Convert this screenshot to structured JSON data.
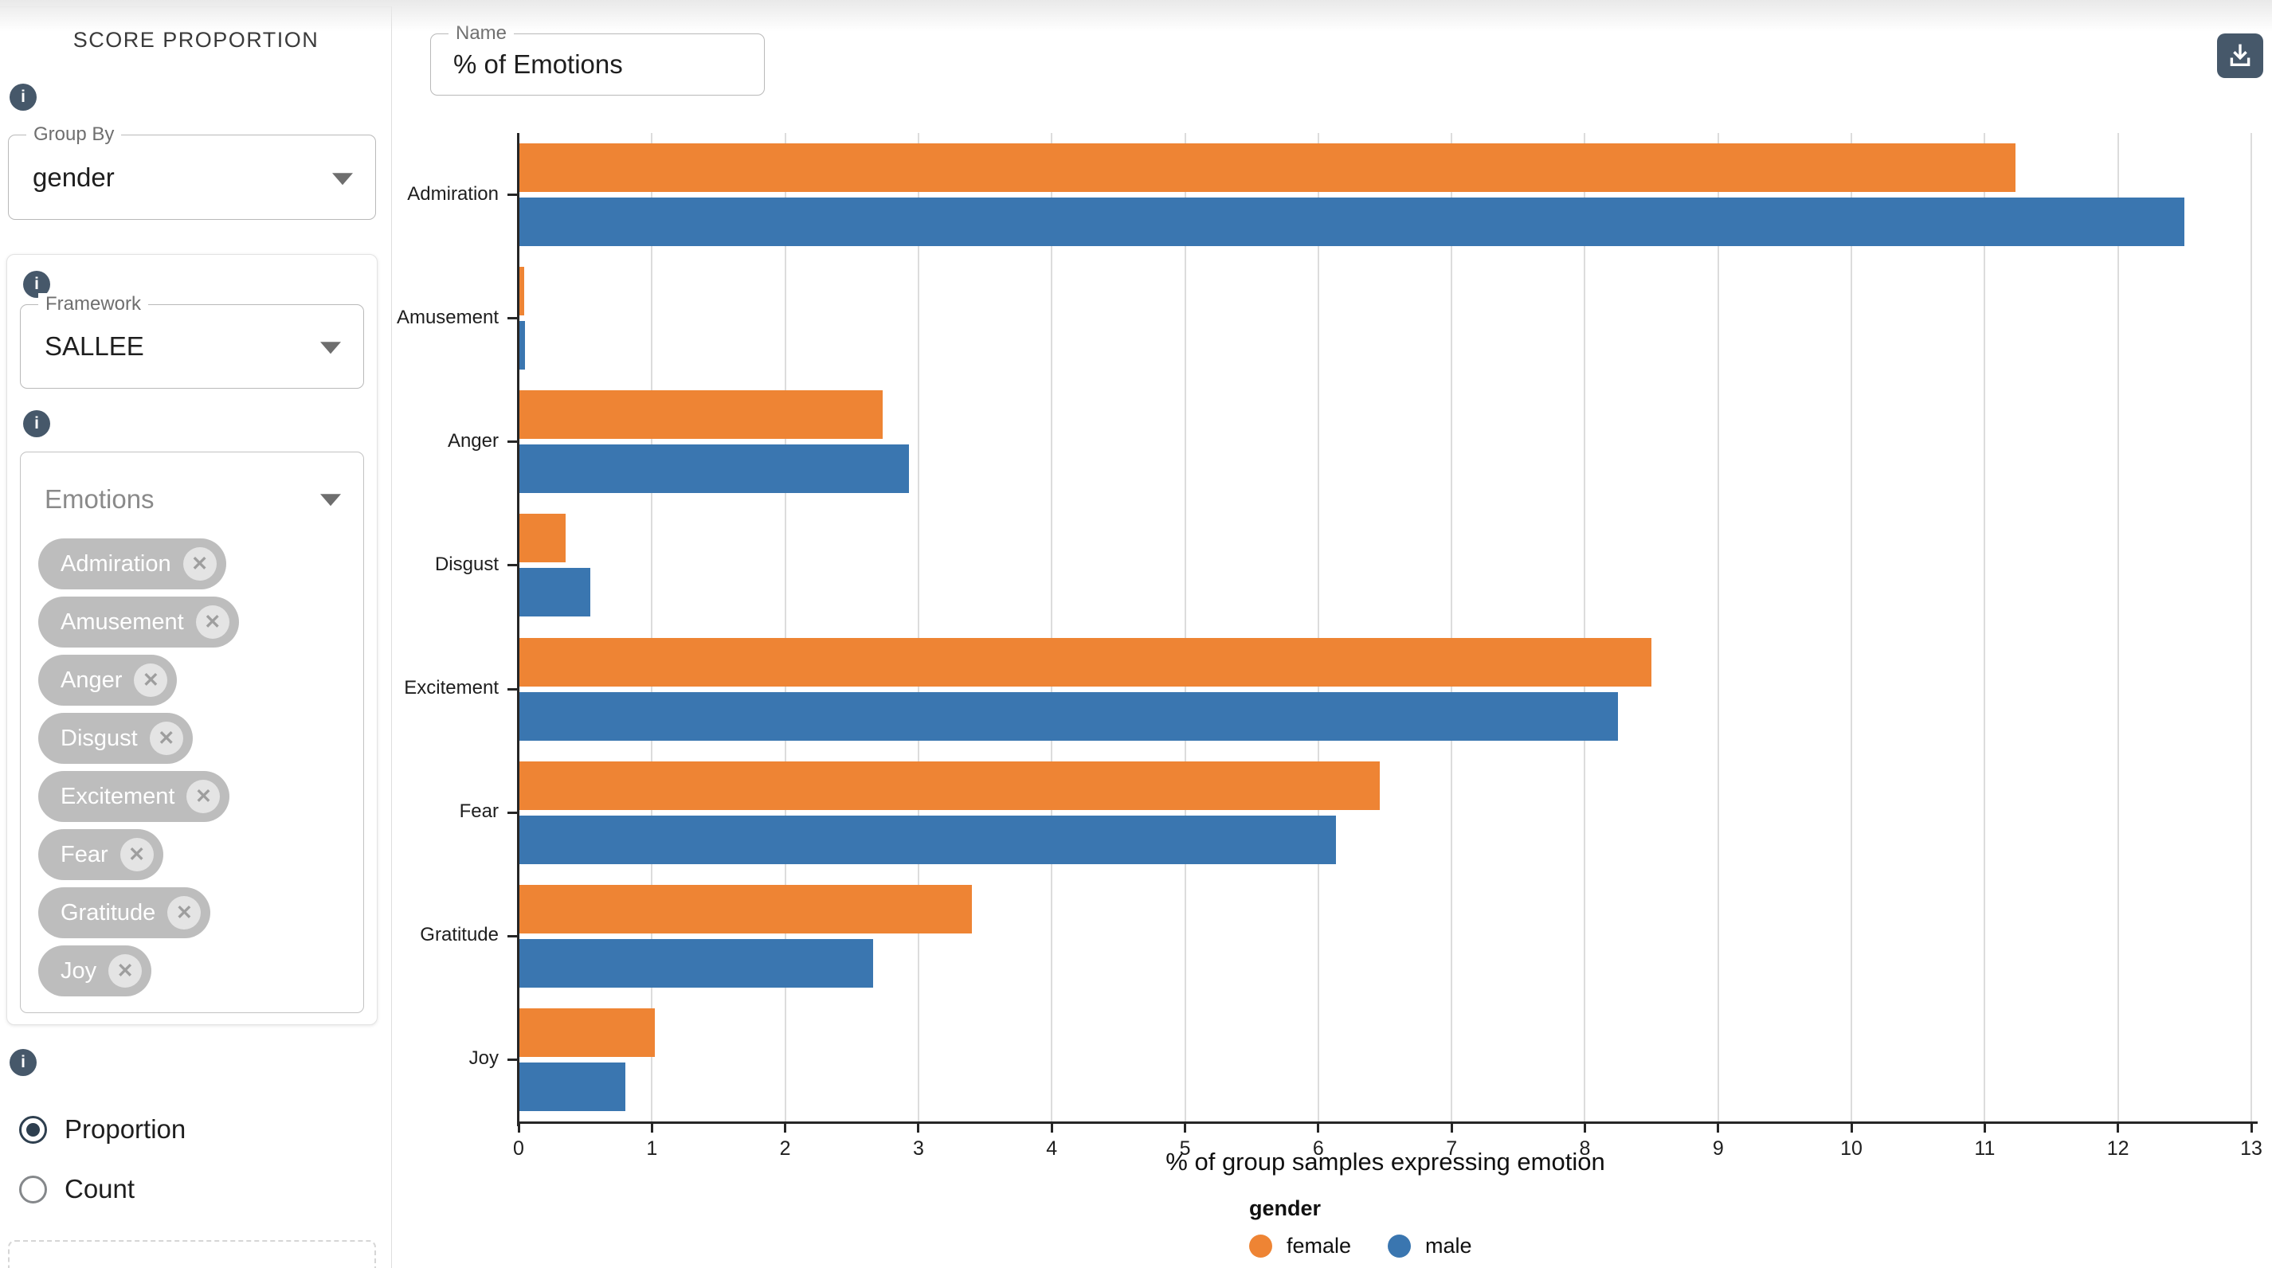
{
  "page": {
    "accent_color": "#46586a",
    "chip_color": "#bdbdbd"
  },
  "sidebar": {
    "title": "SCORE PROPORTION",
    "group_by": {
      "label": "Group By",
      "value": "gender"
    },
    "framework": {
      "label": "Framework",
      "value": "SALLEE"
    },
    "emotions": {
      "label": "Emotions",
      "remove_glyph": "✕",
      "chips": [
        "Admiration",
        "Amusement",
        "Anger",
        "Disgust",
        "Excitement",
        "Fear",
        "Gratitude",
        "Joy"
      ]
    },
    "modes": [
      {
        "label": "Proportion",
        "selected": true
      },
      {
        "label": "Count",
        "selected": false
      }
    ]
  },
  "header": {
    "name_field": {
      "label": "Name",
      "value": "% of Emotions"
    }
  },
  "chart_data": {
    "type": "bar",
    "orientation": "horizontal",
    "title": "",
    "xlabel": "% of group samples expressing emotion",
    "ylabel": "",
    "xlim": [
      0,
      13
    ],
    "xticks": [
      0,
      1,
      2,
      3,
      4,
      5,
      6,
      7,
      8,
      9,
      10,
      11,
      12,
      13
    ],
    "grid": true,
    "categories": [
      "Admiration",
      "Amusement",
      "Anger",
      "Disgust",
      "Excitement",
      "Fear",
      "Gratitude",
      "Joy"
    ],
    "series": [
      {
        "name": "female",
        "color": "#ee8434",
        "values": [
          11.23,
          0.04,
          2.73,
          0.35,
          8.5,
          6.46,
          3.4,
          1.02
        ]
      },
      {
        "name": "male",
        "color": "#3a76b0",
        "values": [
          12.5,
          0.05,
          2.93,
          0.54,
          8.25,
          6.13,
          2.66,
          0.8
        ]
      }
    ],
    "legend_title": "gender",
    "legend_position": "bottom"
  }
}
